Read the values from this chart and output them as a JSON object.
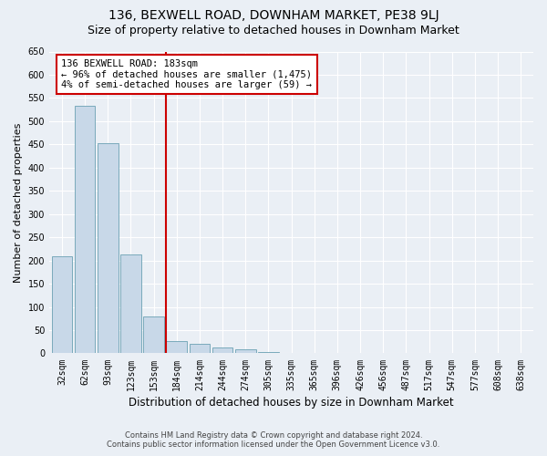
{
  "title": "136, BEXWELL ROAD, DOWNHAM MARKET, PE38 9LJ",
  "subtitle": "Size of property relative to detached houses in Downham Market",
  "xlabel": "Distribution of detached houses by size in Downham Market",
  "ylabel": "Number of detached properties",
  "bin_labels": [
    "32sqm",
    "62sqm",
    "93sqm",
    "123sqm",
    "153sqm",
    "184sqm",
    "214sqm",
    "244sqm",
    "274sqm",
    "305sqm",
    "335sqm",
    "365sqm",
    "396sqm",
    "426sqm",
    "456sqm",
    "487sqm",
    "517sqm",
    "547sqm",
    "577sqm",
    "608sqm",
    "638sqm"
  ],
  "bar_heights": [
    210,
    533,
    452,
    213,
    80,
    27,
    20,
    12,
    8,
    2,
    0,
    0,
    1,
    0,
    0,
    0,
    1,
    0,
    0,
    1,
    0
  ],
  "bar_color": "#c8d8e8",
  "bar_edge_color": "#7aaabb",
  "vline_x_index": 5,
  "vline_color": "#cc0000",
  "annotation_title": "136 BEXWELL ROAD: 183sqm",
  "annotation_line1": "← 96% of detached houses are smaller (1,475)",
  "annotation_line2": "4% of semi-detached houses are larger (59) →",
  "annotation_box_color": "#ffffff",
  "annotation_box_edge": "#cc0000",
  "ylim": [
    0,
    650
  ],
  "yticks": [
    0,
    50,
    100,
    150,
    200,
    250,
    300,
    350,
    400,
    450,
    500,
    550,
    600,
    650
  ],
  "footnote1": "Contains HM Land Registry data © Crown copyright and database right 2024.",
  "footnote2": "Contains public sector information licensed under the Open Government Licence v3.0.",
  "bg_color": "#eaeff5",
  "plot_bg_color": "#eaeff5",
  "grid_color": "#ffffff",
  "title_fontsize": 10,
  "subtitle_fontsize": 9,
  "tick_fontsize": 7,
  "ylabel_fontsize": 8,
  "xlabel_fontsize": 8.5,
  "footnote_fontsize": 6,
  "annot_fontsize": 7.5
}
